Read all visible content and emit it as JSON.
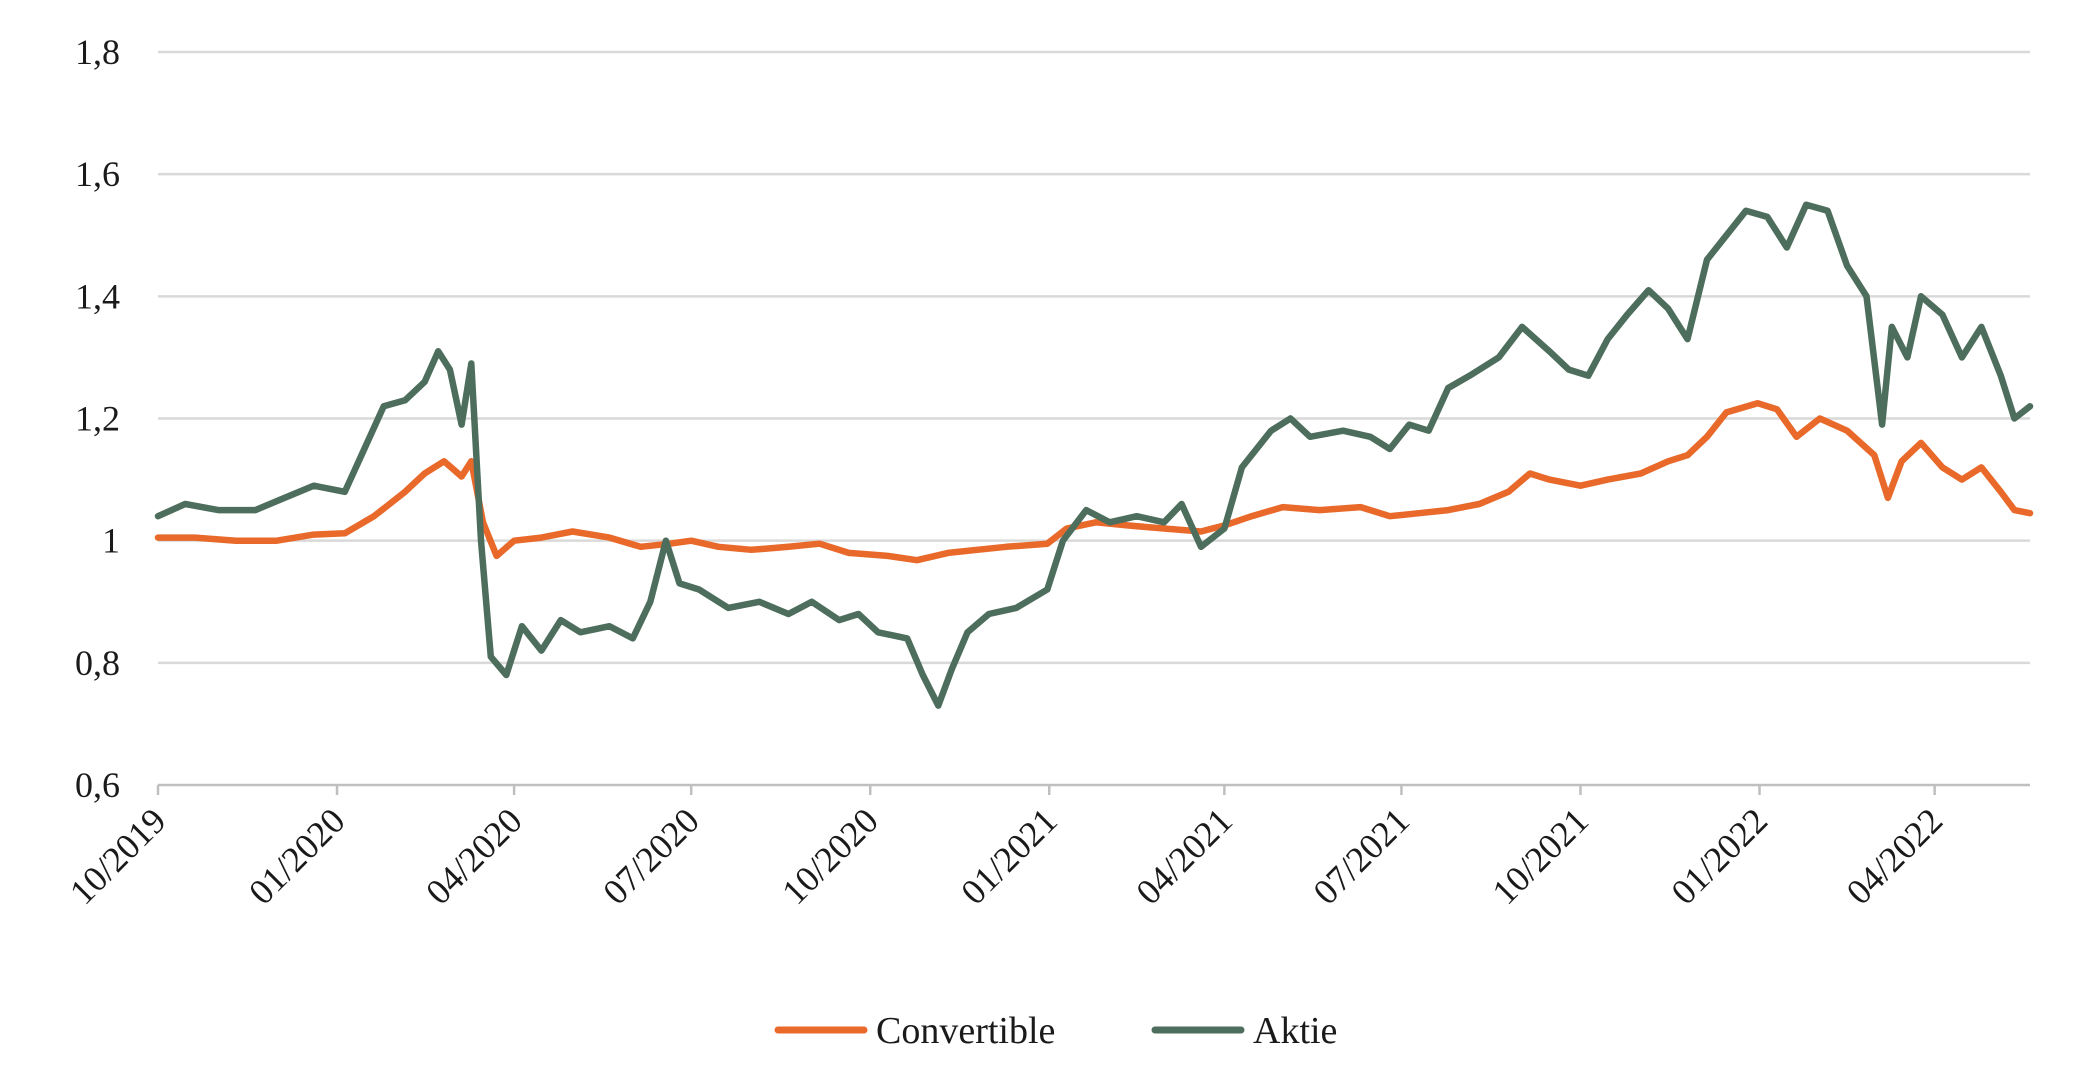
{
  "chart_data": {
    "type": "line",
    "title": "",
    "xlabel": "",
    "ylabel": "",
    "ylim": [
      0.6,
      1.8
    ],
    "yticks": [
      {
        "value": 0.6,
        "label": "0,6"
      },
      {
        "value": 0.8,
        "label": "0,8"
      },
      {
        "value": 1.0,
        "label": "1"
      },
      {
        "value": 1.2,
        "label": "1,2"
      },
      {
        "value": 1.4,
        "label": "1,4"
      },
      {
        "value": 1.6,
        "label": "1,6"
      },
      {
        "value": 1.8,
        "label": "1,8"
      }
    ],
    "xlim": [
      "2019-10-01",
      "2022-05-20"
    ],
    "xticks": [
      {
        "date": "2019-10-01",
        "label": "10/2019"
      },
      {
        "date": "2020-01-01",
        "label": "01/2020"
      },
      {
        "date": "2020-04-01",
        "label": "04/2020"
      },
      {
        "date": "2020-07-01",
        "label": "07/2020"
      },
      {
        "date": "2020-10-01",
        "label": "10/2020"
      },
      {
        "date": "2021-01-01",
        "label": "01/2021"
      },
      {
        "date": "2021-04-01",
        "label": "04/2021"
      },
      {
        "date": "2021-07-01",
        "label": "07/2021"
      },
      {
        "date": "2021-10-01",
        "label": "10/2021"
      },
      {
        "date": "2022-01-01",
        "label": "01/2022"
      },
      {
        "date": "2022-04-01",
        "label": "04/2022"
      }
    ],
    "grid": true,
    "legend_position": "bottom-center",
    "series": [
      {
        "name": "Convertible",
        "color": "#E8692A",
        "points": [
          [
            "2019-10-01",
            1.005
          ],
          [
            "2019-10-20",
            1.005
          ],
          [
            "2019-11-10",
            1.0
          ],
          [
            "2019-12-01",
            1.0
          ],
          [
            "2019-12-20",
            1.01
          ],
          [
            "2020-01-05",
            1.012
          ],
          [
            "2020-01-20",
            1.04
          ],
          [
            "2020-02-05",
            1.08
          ],
          [
            "2020-02-15",
            1.11
          ],
          [
            "2020-02-25",
            1.13
          ],
          [
            "2020-03-05",
            1.105
          ],
          [
            "2020-03-10",
            1.13
          ],
          [
            "2020-03-16",
            1.03
          ],
          [
            "2020-03-23",
            0.975
          ],
          [
            "2020-04-01",
            1.0
          ],
          [
            "2020-04-15",
            1.005
          ],
          [
            "2020-05-01",
            1.015
          ],
          [
            "2020-05-20",
            1.005
          ],
          [
            "2020-06-05",
            0.99
          ],
          [
            "2020-06-20",
            0.995
          ],
          [
            "2020-07-01",
            1.0
          ],
          [
            "2020-07-15",
            0.99
          ],
          [
            "2020-08-01",
            0.985
          ],
          [
            "2020-08-20",
            0.99
          ],
          [
            "2020-09-05",
            0.995
          ],
          [
            "2020-09-20",
            0.98
          ],
          [
            "2020-10-10",
            0.975
          ],
          [
            "2020-10-25",
            0.968
          ],
          [
            "2020-11-10",
            0.98
          ],
          [
            "2020-11-25",
            0.985
          ],
          [
            "2020-12-10",
            0.99
          ],
          [
            "2020-12-31",
            0.995
          ],
          [
            "2021-01-10",
            1.02
          ],
          [
            "2021-01-25",
            1.03
          ],
          [
            "2021-02-10",
            1.025
          ],
          [
            "2021-03-01",
            1.02
          ],
          [
            "2021-03-20",
            1.015
          ],
          [
            "2021-04-01",
            1.025
          ],
          [
            "2021-04-15",
            1.04
          ],
          [
            "2021-05-01",
            1.055
          ],
          [
            "2021-05-20",
            1.05
          ],
          [
            "2021-06-10",
            1.055
          ],
          [
            "2021-06-25",
            1.04
          ],
          [
            "2021-07-10",
            1.045
          ],
          [
            "2021-07-25",
            1.05
          ],
          [
            "2021-08-10",
            1.06
          ],
          [
            "2021-08-25",
            1.08
          ],
          [
            "2021-09-05",
            1.11
          ],
          [
            "2021-09-15",
            1.1
          ],
          [
            "2021-10-01",
            1.09
          ],
          [
            "2021-10-15",
            1.1
          ],
          [
            "2021-11-01",
            1.11
          ],
          [
            "2021-11-15",
            1.13
          ],
          [
            "2021-11-25",
            1.14
          ],
          [
            "2021-12-05",
            1.17
          ],
          [
            "2021-12-15",
            1.21
          ],
          [
            "2021-12-31",
            1.225
          ],
          [
            "2022-01-10",
            1.215
          ],
          [
            "2022-01-20",
            1.17
          ],
          [
            "2022-02-01",
            1.2
          ],
          [
            "2022-02-15",
            1.18
          ],
          [
            "2022-03-01",
            1.14
          ],
          [
            "2022-03-08",
            1.07
          ],
          [
            "2022-03-15",
            1.13
          ],
          [
            "2022-03-25",
            1.16
          ],
          [
            "2022-04-05",
            1.12
          ],
          [
            "2022-04-15",
            1.1
          ],
          [
            "2022-04-25",
            1.12
          ],
          [
            "2022-05-05",
            1.08
          ],
          [
            "2022-05-12",
            1.05
          ],
          [
            "2022-05-20",
            1.045
          ]
        ]
      },
      {
        "name": "Aktie",
        "color": "#4E6E5D",
        "points": [
          [
            "2019-10-01",
            1.04
          ],
          [
            "2019-10-15",
            1.06
          ],
          [
            "2019-11-01",
            1.05
          ],
          [
            "2019-11-20",
            1.05
          ],
          [
            "2019-12-05",
            1.07
          ],
          [
            "2019-12-20",
            1.09
          ],
          [
            "2020-01-05",
            1.08
          ],
          [
            "2020-01-15",
            1.15
          ],
          [
            "2020-01-25",
            1.22
          ],
          [
            "2020-02-05",
            1.23
          ],
          [
            "2020-02-15",
            1.26
          ],
          [
            "2020-02-22",
            1.31
          ],
          [
            "2020-02-28",
            1.28
          ],
          [
            "2020-03-05",
            1.19
          ],
          [
            "2020-03-10",
            1.29
          ],
          [
            "2020-03-15",
            1.0
          ],
          [
            "2020-03-20",
            0.81
          ],
          [
            "2020-03-28",
            0.78
          ],
          [
            "2020-04-05",
            0.86
          ],
          [
            "2020-04-15",
            0.82
          ],
          [
            "2020-04-25",
            0.87
          ],
          [
            "2020-05-05",
            0.85
          ],
          [
            "2020-05-20",
            0.86
          ],
          [
            "2020-06-01",
            0.84
          ],
          [
            "2020-06-10",
            0.9
          ],
          [
            "2020-06-18",
            1.0
          ],
          [
            "2020-06-25",
            0.93
          ],
          [
            "2020-07-05",
            0.92
          ],
          [
            "2020-07-20",
            0.89
          ],
          [
            "2020-08-05",
            0.9
          ],
          [
            "2020-08-20",
            0.88
          ],
          [
            "2020-09-01",
            0.9
          ],
          [
            "2020-09-15",
            0.87
          ],
          [
            "2020-09-25",
            0.88
          ],
          [
            "2020-10-05",
            0.85
          ],
          [
            "2020-10-20",
            0.84
          ],
          [
            "2020-10-28",
            0.78
          ],
          [
            "2020-11-05",
            0.73
          ],
          [
            "2020-11-12",
            0.79
          ],
          [
            "2020-11-20",
            0.85
          ],
          [
            "2020-12-01",
            0.88
          ],
          [
            "2020-12-15",
            0.89
          ],
          [
            "2020-12-31",
            0.92
          ],
          [
            "2021-01-08",
            1.0
          ],
          [
            "2021-01-20",
            1.05
          ],
          [
            "2021-02-01",
            1.03
          ],
          [
            "2021-02-15",
            1.04
          ],
          [
            "2021-03-01",
            1.03
          ],
          [
            "2021-03-10",
            1.06
          ],
          [
            "2021-03-20",
            0.99
          ],
          [
            "2021-04-01",
            1.02
          ],
          [
            "2021-04-10",
            1.12
          ],
          [
            "2021-04-25",
            1.18
          ],
          [
            "2021-05-05",
            1.2
          ],
          [
            "2021-05-15",
            1.17
          ],
          [
            "2021-06-01",
            1.18
          ],
          [
            "2021-06-15",
            1.17
          ],
          [
            "2021-06-25",
            1.15
          ],
          [
            "2021-07-05",
            1.19
          ],
          [
            "2021-07-15",
            1.18
          ],
          [
            "2021-07-25",
            1.25
          ],
          [
            "2021-08-05",
            1.27
          ],
          [
            "2021-08-20",
            1.3
          ],
          [
            "2021-09-01",
            1.35
          ],
          [
            "2021-09-15",
            1.31
          ],
          [
            "2021-09-25",
            1.28
          ],
          [
            "2021-10-05",
            1.27
          ],
          [
            "2021-10-15",
            1.33
          ],
          [
            "2021-10-25",
            1.37
          ],
          [
            "2021-11-05",
            1.41
          ],
          [
            "2021-11-15",
            1.38
          ],
          [
            "2021-11-25",
            1.33
          ],
          [
            "2021-12-05",
            1.46
          ],
          [
            "2021-12-15",
            1.5
          ],
          [
            "2021-12-25",
            1.54
          ],
          [
            "2022-01-05",
            1.53
          ],
          [
            "2022-01-15",
            1.48
          ],
          [
            "2022-01-25",
            1.55
          ],
          [
            "2022-02-05",
            1.54
          ],
          [
            "2022-02-15",
            1.45
          ],
          [
            "2022-02-25",
            1.4
          ],
          [
            "2022-03-05",
            1.19
          ],
          [
            "2022-03-10",
            1.35
          ],
          [
            "2022-03-18",
            1.3
          ],
          [
            "2022-03-25",
            1.4
          ],
          [
            "2022-04-05",
            1.37
          ],
          [
            "2022-04-15",
            1.3
          ],
          [
            "2022-04-25",
            1.35
          ],
          [
            "2022-05-05",
            1.27
          ],
          [
            "2022-05-12",
            1.2
          ],
          [
            "2022-05-20",
            1.22
          ]
        ]
      }
    ]
  }
}
